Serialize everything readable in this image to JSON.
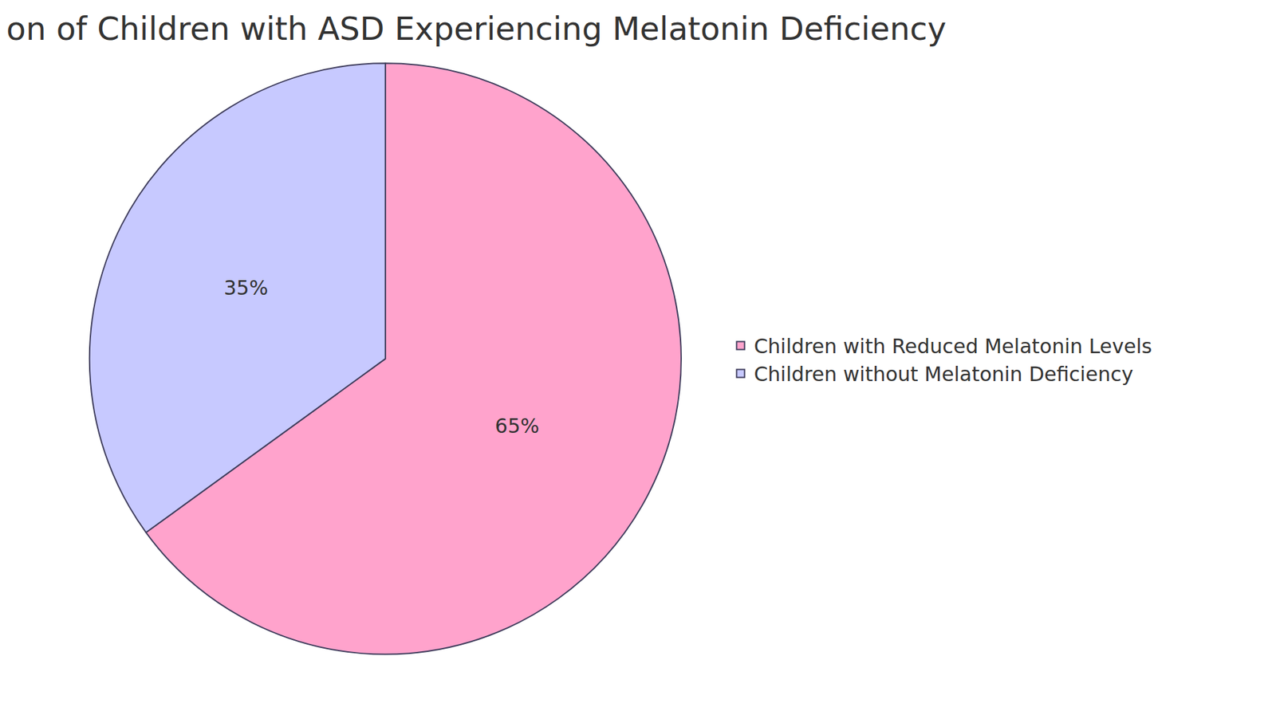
{
  "chart_data": {
    "type": "pie",
    "title": "on of Children with ASD Experiencing Melatonin Deficiency",
    "categories": [
      "Children with Reduced Melatonin Levels",
      "Children without Melatonin Deficiency"
    ],
    "values": [
      65,
      35
    ],
    "value_labels": [
      "65%",
      "35%"
    ],
    "colors": [
      "#ffa3cc",
      "#c7c9ff"
    ],
    "data_labels": true,
    "legend": "right"
  }
}
